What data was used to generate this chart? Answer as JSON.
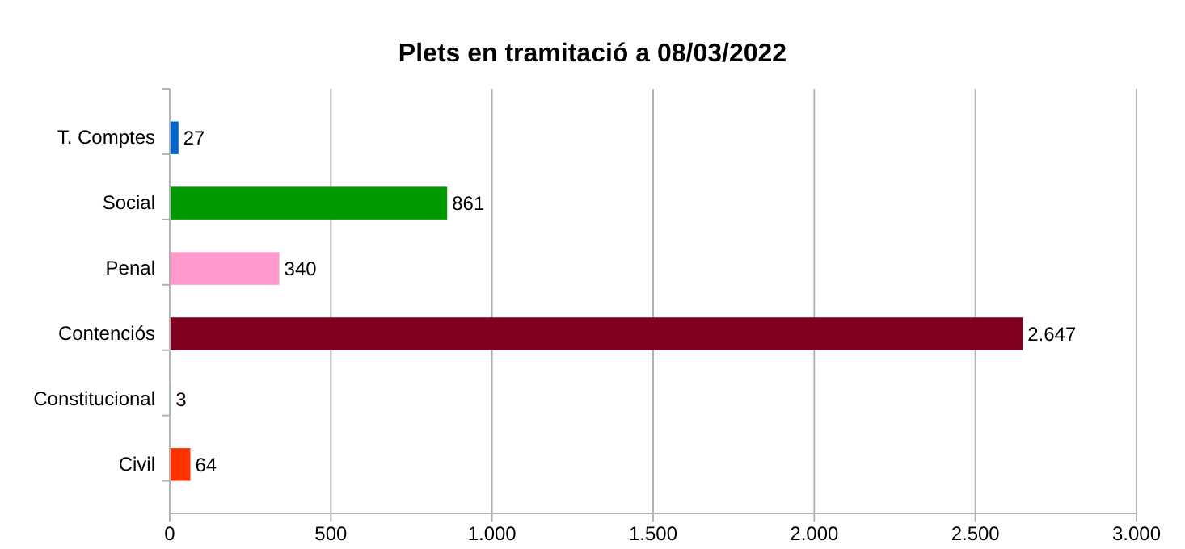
{
  "chart_data": {
    "type": "bar",
    "orientation": "horizontal",
    "title": "Plets en tramitació a 08/03/2022",
    "categories": [
      "T. Comptes",
      "Social",
      "Penal",
      "Contenciós",
      "Constitucional",
      "Civil"
    ],
    "values": [
      27,
      861,
      340,
      2647,
      3,
      64
    ],
    "colors": [
      "#0066cc",
      "#009900",
      "#ff99cc",
      "#800020",
      "#00a0e0",
      "#ff3300"
    ],
    "value_labels": [
      "27",
      "861",
      "340",
      "2.647",
      "3",
      "64"
    ],
    "xlim": [
      0,
      3000
    ],
    "xticks": [
      0,
      500,
      {
        "value": 1000,
        "label": "1.000"
      },
      {
        "value": 1500,
        "label": "1.500"
      },
      {
        "value": 2000,
        "label": "2.000"
      },
      {
        "value": 2500,
        "label": "2.500"
      },
      {
        "value": 3000,
        "label": "3.000"
      }
    ],
    "grid": "x"
  }
}
